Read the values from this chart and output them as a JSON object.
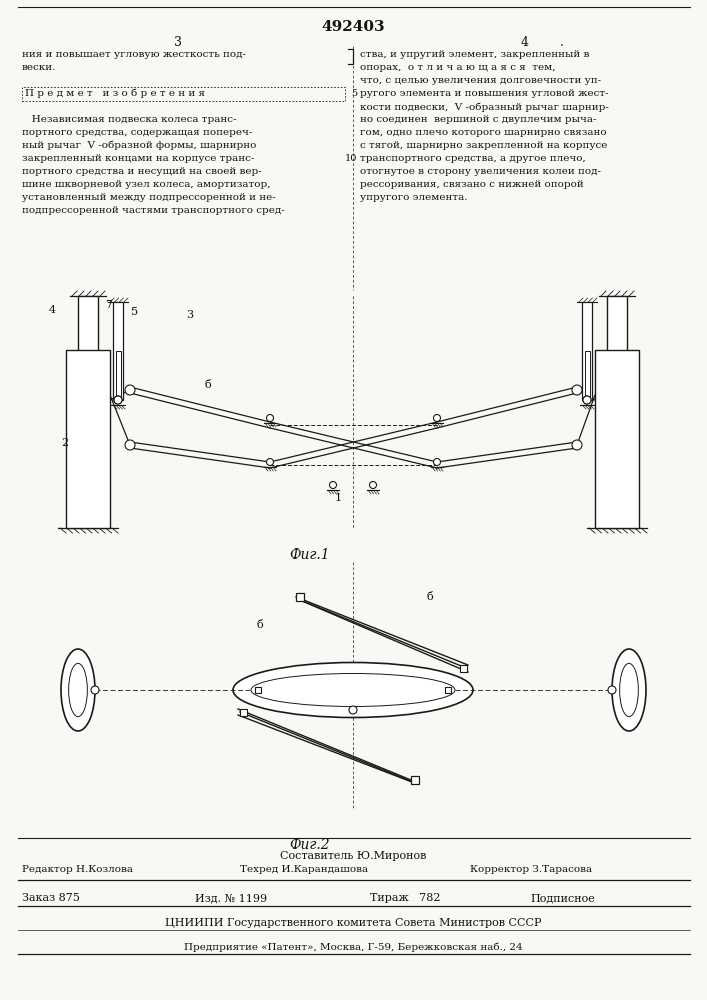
{
  "patent_number": "492403",
  "col1_text": [
    "ния и повышает угловую жесткость под-",
    "вески.",
    "",
    "П р е д м е т   и з о б р е т е н и я",
    "",
    "   Независимая подвеска колеса транс-",
    "портного средства, содержащая попереч-",
    "ный рычаг  V -образной формы, шарнирно",
    "закрепленный концами на корпусе транс-",
    "портного средства и несущий на своей вер-",
    "шине шкворневой узел колеса, амортизатор,",
    "установленный между подпрессоренной и не-",
    "подпрессоренной частями транспортного сред-"
  ],
  "col2_text": [
    "ства, и упругий элемент, закрепленный в",
    "опорах,  о т л и ч а ю щ а я с я  тем,",
    "что, с целью увеличения долговечности уп-",
    "ругого элемента и повышения угловой жест-",
    "кости подвески,  V -образный рычаг шарнир-",
    "но соединен  вершиной с двуплечим рыча-",
    "гом, одно плечо которого шарнирно связано",
    "с тягой, шарнирно закрепленной на корпусе",
    "транспортного средства, а другое плечо,",
    "отогнутое в сторону увеличения колеи под-",
    "рессоривания, связано с нижней опорой",
    "упругого элемента."
  ],
  "fig1_caption": "Фиг.1",
  "fig2_caption": "Фиг.2",
  "footer_compiler": "Составитель Ю.Миронов",
  "footer_editor": "Редактор Н.Козлова",
  "footer_techred": "Техред И.Карандашова",
  "footer_corrector": "Корректор З.Тарасова",
  "footer_order": "Заказ 875",
  "footer_izd": "Изд. № 1199",
  "footer_tirazh": "Тираж   782",
  "footer_podpisnoe": "Подписное",
  "footer_org": "ЦНИИПИ Государственного комитета Совета Министров СССР",
  "footer_addr": "Предприятие «Патент», Москва, Г-59, Бережковская наб., 24",
  "bg_color": "#f8f8f5",
  "text_color": "#111111",
  "line_color": "#1a1a1a"
}
